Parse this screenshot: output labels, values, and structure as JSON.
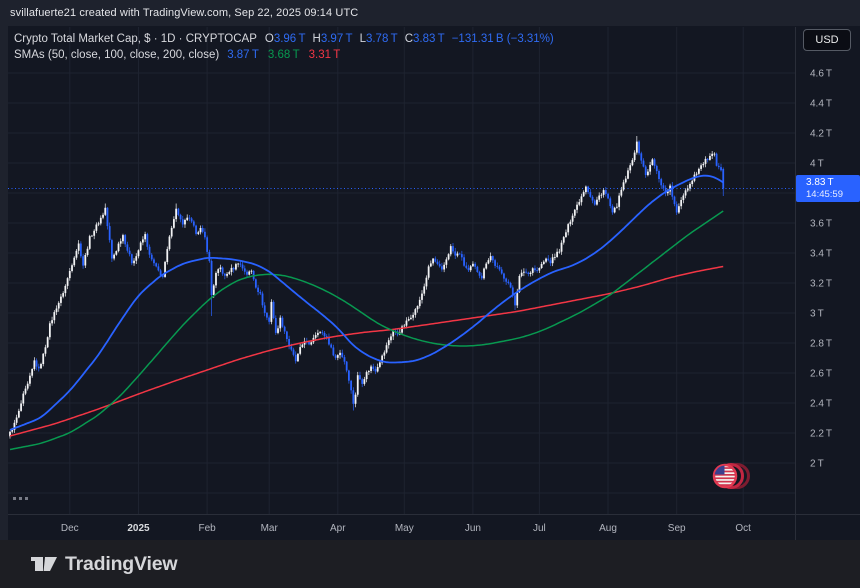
{
  "top_bar": {
    "attribution": "svillafuerte21 created with TradingView.com, Sep 22, 2025 09:14 UTC"
  },
  "currency_button": {
    "label": "USD"
  },
  "legend": {
    "title": "Crypto Total Market Cap, $ · 1D · CRYPTOCAP",
    "ohlc": [
      {
        "label": "O",
        "value": "3.96 T"
      },
      {
        "label": "H",
        "value": "3.97 T"
      },
      {
        "label": "L",
        "value": "3.78 T"
      },
      {
        "label": "C",
        "value": "3.83 T"
      }
    ],
    "change": "−131.31 B (−3.31%)",
    "smas_label": "SMAs (50, close, 100, close, 200, close)",
    "sma_values": [
      {
        "value": "3.87 T",
        "color": "#2f6bf2"
      },
      {
        "value": "3.68 T",
        "color": "#089950"
      },
      {
        "value": "3.31 T",
        "color": "#f23645"
      }
    ]
  },
  "price_label": {
    "price": "3.83 T",
    "countdown": "14:45:59"
  },
  "footer": {
    "brand": "TradingView"
  },
  "colors": {
    "background": "#131722",
    "chrome": "#1e222d",
    "grid": "#1e2330",
    "axis_text": "#b2b5be",
    "up_candle": "#f2f3f5",
    "down_candle": "#2962ff",
    "sma50": "#2962ff",
    "sma100": "#089950",
    "sma200": "#f23645",
    "last_price": "#2962ff"
  },
  "chart_data": {
    "type": "candlestick",
    "title": "Crypto Total Market Cap",
    "symbol": "CRYPTOCAP",
    "interval": "1D",
    "units": "trillions USD",
    "last_price_line": 3.83,
    "last_candle": {
      "open": 3.96,
      "high": 3.97,
      "low": 3.78,
      "close": 3.83
    },
    "y_axis": {
      "range_top": 4.6,
      "range_step": 0.2,
      "grid_rows": 15,
      "ticks": [
        {
          "label": "4.6 T",
          "price": 4.6
        },
        {
          "label": "4.4 T",
          "price": 4.4
        },
        {
          "label": "4.2 T",
          "price": 4.2
        },
        {
          "label": "4 T",
          "price": 4.0
        },
        {
          "label": "3.6 T",
          "price": 3.6
        },
        {
          "label": "3.4 T",
          "price": 3.4
        },
        {
          "label": "3.2 T",
          "price": 3.2
        },
        {
          "label": "3 T",
          "price": 3.0
        },
        {
          "label": "2.8 T",
          "price": 2.8
        },
        {
          "label": "2.6 T",
          "price": 2.6
        },
        {
          "label": "2.4 T",
          "price": 2.4
        },
        {
          "label": "2.2 T",
          "price": 2.2
        },
        {
          "label": "2 T",
          "price": 2.0
        }
      ]
    },
    "x_axis": {
      "labels": [
        {
          "label": "Dec",
          "day": 27
        },
        {
          "label": "2025",
          "day": 58,
          "major": true
        },
        {
          "label": "Feb",
          "day": 89
        },
        {
          "label": "Mar",
          "day": 117
        },
        {
          "label": "Apr",
          "day": 148
        },
        {
          "label": "May",
          "day": 178
        },
        {
          "label": "Jun",
          "day": 209
        },
        {
          "label": "Jul",
          "day": 239
        },
        {
          "label": "Aug",
          "day": 270
        },
        {
          "label": "Sep",
          "day": 301
        },
        {
          "label": "Oct",
          "day": 331
        }
      ]
    },
    "close_anchors": [
      [
        0,
        2.2
      ],
      [
        1,
        2.23
      ],
      [
        2,
        2.26
      ],
      [
        4,
        2.34
      ],
      [
        6,
        2.45
      ],
      [
        8,
        2.52
      ],
      [
        10,
        2.62
      ],
      [
        11,
        2.68
      ],
      [
        13,
        2.62
      ],
      [
        15,
        2.72
      ],
      [
        16,
        2.78
      ],
      [
        18,
        2.92
      ],
      [
        20,
        3.0
      ],
      [
        21,
        3.04
      ],
      [
        23,
        3.1
      ],
      [
        25,
        3.18
      ],
      [
        27,
        3.28
      ],
      [
        29,
        3.38
      ],
      [
        31,
        3.46
      ],
      [
        33,
        3.32
      ],
      [
        36,
        3.5
      ],
      [
        39,
        3.58
      ],
      [
        42,
        3.66
      ],
      [
        43,
        3.7
      ],
      [
        44,
        3.58
      ],
      [
        45,
        3.48
      ],
      [
        46,
        3.36
      ],
      [
        48,
        3.42
      ],
      [
        49,
        3.46
      ],
      [
        51,
        3.52
      ],
      [
        53,
        3.42
      ],
      [
        55,
        3.34
      ],
      [
        57,
        3.38
      ],
      [
        59,
        3.46
      ],
      [
        61,
        3.52
      ],
      [
        63,
        3.38
      ],
      [
        66,
        3.3
      ],
      [
        69,
        3.24
      ],
      [
        71,
        3.42
      ],
      [
        73,
        3.58
      ],
      [
        75,
        3.69
      ],
      [
        76,
        3.66
      ],
      [
        78,
        3.58
      ],
      [
        80,
        3.64
      ],
      [
        82,
        3.6
      ],
      [
        84,
        3.54
      ],
      [
        86,
        3.56
      ],
      [
        88,
        3.5
      ],
      [
        90,
        3.34
      ],
      [
        91,
        3.12
      ],
      [
        93,
        3.26
      ],
      [
        95,
        3.3
      ],
      [
        97,
        3.24
      ],
      [
        99,
        3.28
      ],
      [
        101,
        3.3
      ],
      [
        103,
        3.34
      ],
      [
        105,
        3.3
      ],
      [
        107,
        3.26
      ],
      [
        109,
        3.28
      ],
      [
        111,
        3.18
      ],
      [
        113,
        3.12
      ],
      [
        115,
        3.0
      ],
      [
        117,
        2.94
      ],
      [
        118,
        3.08
      ],
      [
        120,
        2.86
      ],
      [
        122,
        2.96
      ],
      [
        124,
        2.88
      ],
      [
        126,
        2.78
      ],
      [
        129,
        2.68
      ],
      [
        131,
        2.76
      ],
      [
        133,
        2.82
      ],
      [
        135,
        2.78
      ],
      [
        137,
        2.84
      ],
      [
        139,
        2.88
      ],
      [
        141,
        2.86
      ],
      [
        143,
        2.84
      ],
      [
        145,
        2.76
      ],
      [
        147,
        2.7
      ],
      [
        149,
        2.74
      ],
      [
        151,
        2.68
      ],
      [
        153,
        2.56
      ],
      [
        155,
        2.4
      ],
      [
        156,
        2.46
      ],
      [
        157,
        2.58
      ],
      [
        159,
        2.54
      ],
      [
        161,
        2.6
      ],
      [
        163,
        2.64
      ],
      [
        165,
        2.62
      ],
      [
        167,
        2.68
      ],
      [
        169,
        2.74
      ],
      [
        171,
        2.82
      ],
      [
        173,
        2.88
      ],
      [
        175,
        2.86
      ],
      [
        177,
        2.9
      ],
      [
        179,
        2.94
      ],
      [
        181,
        2.98
      ],
      [
        183,
        3.02
      ],
      [
        185,
        3.08
      ],
      [
        187,
        3.18
      ],
      [
        189,
        3.3
      ],
      [
        191,
        3.36
      ],
      [
        193,
        3.32
      ],
      [
        195,
        3.28
      ],
      [
        197,
        3.36
      ],
      [
        199,
        3.44
      ],
      [
        201,
        3.38
      ],
      [
        203,
        3.4
      ],
      [
        205,
        3.32
      ],
      [
        207,
        3.28
      ],
      [
        209,
        3.32
      ],
      [
        211,
        3.28
      ],
      [
        213,
        3.24
      ],
      [
        215,
        3.34
      ],
      [
        217,
        3.38
      ],
      [
        219,
        3.32
      ],
      [
        221,
        3.28
      ],
      [
        223,
        3.24
      ],
      [
        225,
        3.2
      ],
      [
        227,
        3.12
      ],
      [
        228,
        3.06
      ],
      [
        230,
        3.24
      ],
      [
        232,
        3.28
      ],
      [
        234,
        3.26
      ],
      [
        236,
        3.3
      ],
      [
        238,
        3.28
      ],
      [
        240,
        3.32
      ],
      [
        242,
        3.36
      ],
      [
        244,
        3.34
      ],
      [
        246,
        3.38
      ],
      [
        248,
        3.42
      ],
      [
        250,
        3.5
      ],
      [
        252,
        3.58
      ],
      [
        254,
        3.66
      ],
      [
        256,
        3.72
      ],
      [
        258,
        3.78
      ],
      [
        260,
        3.85
      ],
      [
        262,
        3.78
      ],
      [
        264,
        3.72
      ],
      [
        266,
        3.78
      ],
      [
        268,
        3.82
      ],
      [
        270,
        3.76
      ],
      [
        272,
        3.66
      ],
      [
        274,
        3.72
      ],
      [
        276,
        3.82
      ],
      [
        278,
        3.9
      ],
      [
        280,
        3.98
      ],
      [
        282,
        4.08
      ],
      [
        283,
        4.13
      ],
      [
        285,
        4.02
      ],
      [
        287,
        3.92
      ],
      [
        289,
        3.98
      ],
      [
        290,
        4.02
      ],
      [
        292,
        3.94
      ],
      [
        294,
        3.86
      ],
      [
        296,
        3.8
      ],
      [
        298,
        3.84
      ],
      [
        300,
        3.72
      ],
      [
        301,
        3.66
      ],
      [
        303,
        3.76
      ],
      [
        305,
        3.82
      ],
      [
        307,
        3.86
      ],
      [
        309,
        3.92
      ],
      [
        311,
        3.96
      ],
      [
        313,
        4.0
      ],
      [
        315,
        4.03
      ],
      [
        317,
        4.05
      ],
      [
        318,
        4.05
      ],
      [
        319,
        3.98
      ],
      [
        320,
        3.96
      ],
      [
        321,
        3.96
      ],
      [
        322,
        3.83
      ]
    ],
    "wick_overrides": {
      "43": {
        "high": 3.73
      },
      "75": {
        "high": 3.73
      },
      "91": {
        "low": 2.98
      },
      "155": {
        "low": 2.35
      },
      "228": {
        "low": 3.02
      },
      "283": {
        "high": 4.18
      },
      "317": {
        "high": 4.08
      }
    },
    "sma50": [
      [
        0,
        2.22
      ],
      [
        14,
        2.3
      ],
      [
        27,
        2.48
      ],
      [
        40,
        2.72
      ],
      [
        50,
        2.95
      ],
      [
        58,
        3.12
      ],
      [
        68,
        3.25
      ],
      [
        78,
        3.33
      ],
      [
        89,
        3.37
      ],
      [
        100,
        3.36
      ],
      [
        110,
        3.33
      ],
      [
        117,
        3.28
      ],
      [
        125,
        3.18
      ],
      [
        134,
        3.07
      ],
      [
        141,
        2.99
      ],
      [
        148,
        2.9
      ],
      [
        155,
        2.78
      ],
      [
        162,
        2.71
      ],
      [
        169,
        2.67
      ],
      [
        176,
        2.67
      ],
      [
        183,
        2.68
      ],
      [
        190,
        2.72
      ],
      [
        197,
        2.78
      ],
      [
        204,
        2.85
      ],
      [
        211,
        2.93
      ],
      [
        218,
        3.02
      ],
      [
        225,
        3.1
      ],
      [
        232,
        3.17
      ],
      [
        239,
        3.23
      ],
      [
        246,
        3.28
      ],
      [
        253,
        3.31
      ],
      [
        260,
        3.36
      ],
      [
        267,
        3.43
      ],
      [
        274,
        3.52
      ],
      [
        281,
        3.62
      ],
      [
        288,
        3.72
      ],
      [
        295,
        3.8
      ],
      [
        301,
        3.85
      ],
      [
        308,
        3.9
      ],
      [
        313,
        3.92
      ],
      [
        318,
        3.91
      ],
      [
        322,
        3.87
      ]
    ],
    "sma100": [
      [
        0,
        2.09
      ],
      [
        14,
        2.13
      ],
      [
        27,
        2.2
      ],
      [
        40,
        2.32
      ],
      [
        50,
        2.45
      ],
      [
        58,
        2.58
      ],
      [
        68,
        2.75
      ],
      [
        78,
        2.92
      ],
      [
        89,
        3.08
      ],
      [
        96,
        3.16
      ],
      [
        103,
        3.22
      ],
      [
        110,
        3.25
      ],
      [
        117,
        3.26
      ],
      [
        124,
        3.25
      ],
      [
        131,
        3.22
      ],
      [
        138,
        3.18
      ],
      [
        145,
        3.13
      ],
      [
        152,
        3.07
      ],
      [
        159,
        3.0
      ],
      [
        166,
        2.93
      ],
      [
        173,
        2.88
      ],
      [
        180,
        2.84
      ],
      [
        187,
        2.81
      ],
      [
        194,
        2.79
      ],
      [
        201,
        2.78
      ],
      [
        208,
        2.78
      ],
      [
        215,
        2.79
      ],
      [
        222,
        2.81
      ],
      [
        229,
        2.83
      ],
      [
        236,
        2.86
      ],
      [
        243,
        2.9
      ],
      [
        250,
        2.95
      ],
      [
        257,
        3.0
      ],
      [
        264,
        3.06
      ],
      [
        271,
        3.12
      ],
      [
        278,
        3.2
      ],
      [
        285,
        3.28
      ],
      [
        292,
        3.36
      ],
      [
        299,
        3.44
      ],
      [
        306,
        3.52
      ],
      [
        313,
        3.59
      ],
      [
        318,
        3.64
      ],
      [
        322,
        3.68
      ]
    ],
    "sma200": [
      [
        0,
        2.18
      ],
      [
        20,
        2.26
      ],
      [
        40,
        2.36
      ],
      [
        58,
        2.46
      ],
      [
        75,
        2.55
      ],
      [
        89,
        2.62
      ],
      [
        103,
        2.69
      ],
      [
        117,
        2.75
      ],
      [
        131,
        2.8
      ],
      [
        145,
        2.84
      ],
      [
        159,
        2.87
      ],
      [
        173,
        2.89
      ],
      [
        187,
        2.92
      ],
      [
        201,
        2.95
      ],
      [
        215,
        2.98
      ],
      [
        229,
        3.01
      ],
      [
        243,
        3.05
      ],
      [
        257,
        3.09
      ],
      [
        271,
        3.13
      ],
      [
        285,
        3.18
      ],
      [
        299,
        3.24
      ],
      [
        311,
        3.28
      ],
      [
        322,
        3.31
      ]
    ]
  }
}
